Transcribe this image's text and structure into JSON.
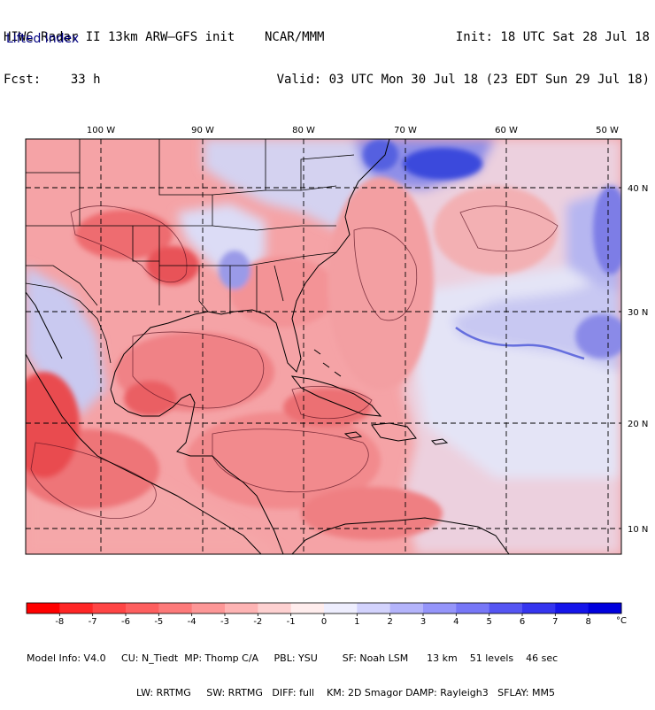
{
  "header": {
    "title_line": "HIWC Radar II 13km ARW—GFS init    NCAR/MMM",
    "forecast_line": "Fcst:    33 h",
    "init_line": "Init: 18 UTC Sat 28 Jul 18",
    "valid_line": "Valid: 03 UTC Mon 30 Jul 18 (23 EDT Sun 29 Jul 18)"
  },
  "field_label": "Lifted index",
  "map": {
    "lon_labels": [
      "100 W",
      "90 W",
      "80 W",
      "70 W",
      "60 W",
      "50 W"
    ],
    "lat_labels": [
      "40 N",
      "30 N",
      "20 N",
      "10 N"
    ],
    "unstable_color": "#e8202a",
    "stable_color": "#1a2ad8",
    "neutral_color": "#f6f2f4"
  },
  "colorbar": {
    "labels": [
      "-8",
      "-7",
      "-6",
      "-5",
      "-4",
      "-3",
      "-2",
      "-1",
      "0",
      "1",
      "2",
      "3",
      "4",
      "5",
      "6",
      "7",
      "8"
    ],
    "unit": "°C",
    "colors": [
      "#ff0000",
      "#ff2626",
      "#ff4545",
      "#fe5f5f",
      "#fd7a7a",
      "#fd9797",
      "#feb4b4",
      "#fed1d1",
      "#ffeded",
      "#eeeefe",
      "#d3d3fd",
      "#b4b4fb",
      "#9595fa",
      "#7777f7",
      "#5555f3",
      "#3535ef",
      "#1515ea",
      "#0000dd"
    ]
  },
  "footer": {
    "line1": "Model Info: V4.0     CU: N_Tiedt  MP: Thomp C/A     PBL: YSU        SF: Noah LSM      13 km    51 levels    46 sec",
    "line2": "LW: RRTMG     SW: RRTMG   DIFF: full    KM: 2D Smagor DAMP: Rayleigh3   SFLAY: MM5"
  }
}
